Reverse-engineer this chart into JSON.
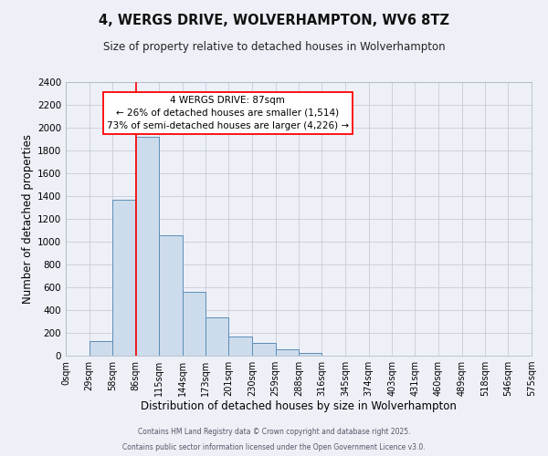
{
  "title": "4, WERGS DRIVE, WOLVERHAMPTON, WV6 8TZ",
  "subtitle": "Size of property relative to detached houses in Wolverhampton",
  "xlabel": "Distribution of detached houses by size in Wolverhampton",
  "ylabel": "Number of detached properties",
  "bar_color": "#cddcec",
  "bar_edge_color": "#5b8db8",
  "bar_left_edges": [
    0,
    29,
    58,
    86,
    115,
    144,
    173,
    201,
    230,
    259,
    288,
    316,
    345,
    374,
    403,
    431,
    460,
    489,
    518,
    546
  ],
  "bar_widths": [
    29,
    29,
    28,
    29,
    29,
    29,
    28,
    29,
    29,
    29,
    28,
    29,
    29,
    29,
    28,
    29,
    29,
    29,
    28,
    29
  ],
  "bar_heights": [
    0,
    130,
    1370,
    1920,
    1060,
    560,
    335,
    165,
    110,
    60,
    25,
    0,
    0,
    0,
    0,
    0,
    0,
    0,
    0,
    0
  ],
  "xlim": [
    0,
    575
  ],
  "ylim": [
    0,
    2400
  ],
  "yticks": [
    0,
    200,
    400,
    600,
    800,
    1000,
    1200,
    1400,
    1600,
    1800,
    2000,
    2200,
    2400
  ],
  "xtick_labels": [
    "0sqm",
    "29sqm",
    "58sqm",
    "86sqm",
    "115sqm",
    "144sqm",
    "173sqm",
    "201sqm",
    "230sqm",
    "259sqm",
    "288sqm",
    "316sqm",
    "345sqm",
    "374sqm",
    "403sqm",
    "431sqm",
    "460sqm",
    "489sqm",
    "518sqm",
    "546sqm",
    "575sqm"
  ],
  "xtick_positions": [
    0,
    29,
    58,
    86,
    115,
    144,
    173,
    201,
    230,
    259,
    288,
    316,
    345,
    374,
    403,
    431,
    460,
    489,
    518,
    546,
    575
  ],
  "red_line_x": 87,
  "annotation_title": "4 WERGS DRIVE: 87sqm",
  "annotation_line1": "← 26% of detached houses are smaller (1,514)",
  "annotation_line2": "73% of semi-detached houses are larger (4,226) →",
  "footer1": "Contains HM Land Registry data © Crown copyright and database right 2025.",
  "footer2": "Contains public sector information licensed under the Open Government Licence v3.0.",
  "bg_color": "#eef0f8",
  "grid_color": "#c8ccd8"
}
